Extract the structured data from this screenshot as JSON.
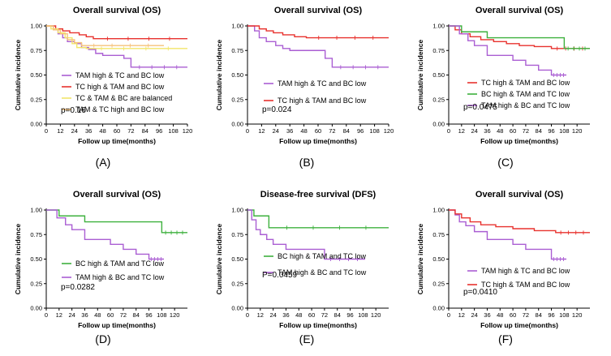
{
  "chart_data": [
    {
      "id": "A",
      "type": "line",
      "panel_label": "(A)",
      "title": "Overall survival  (OS)",
      "xlabel": "Follow up time(months)",
      "ylabel": "Cumulative incidence",
      "xlim": [
        0,
        120
      ],
      "ylim": [
        0,
        1
      ],
      "xticks": [
        "0",
        "12",
        "24",
        "36",
        "48",
        "60",
        "72",
        "84",
        "96",
        "108",
        "120"
      ],
      "yticks": [
        "0.00",
        "0.25",
        "0.50",
        "0.75",
        "1.00"
      ],
      "pvalue": "p=0.16",
      "series": [
        {
          "name": "TAM high  & TC and BC low",
          "color": "#aa5ed3",
          "x": [
            0,
            6,
            10,
            14,
            18,
            24,
            30,
            36,
            42,
            48,
            66,
            72,
            120
          ],
          "y": [
            1.0,
            0.96,
            0.92,
            0.88,
            0.84,
            0.82,
            0.78,
            0.76,
            0.72,
            0.7,
            0.67,
            0.58,
            0.58
          ]
        },
        {
          "name": "TC high  & TAM and BC low",
          "color": "#e8322e",
          "x": [
            0,
            8,
            14,
            20,
            28,
            34,
            40,
            120
          ],
          "y": [
            1.0,
            0.97,
            0.95,
            0.93,
            0.91,
            0.89,
            0.87,
            0.87
          ]
        },
        {
          "name": "TC  & TAM & BC are balanced",
          "color": "#f2e56a",
          "x": [
            0,
            4,
            10,
            16,
            22,
            26,
            34,
            120
          ],
          "y": [
            1.0,
            0.97,
            0.93,
            0.88,
            0.82,
            0.78,
            0.77,
            0.77
          ]
        },
        {
          "name": "TAM  & TC high  and BC low",
          "color": "#f6c27a",
          "x": [
            0,
            6,
            12,
            18,
            24,
            30,
            100
          ],
          "y": [
            1.0,
            0.96,
            0.92,
            0.86,
            0.83,
            0.8,
            0.8
          ]
        }
      ]
    },
    {
      "id": "B",
      "type": "line",
      "panel_label": "(B)",
      "title": "Overall survival  (OS)",
      "xlabel": "Follow up time(months)",
      "ylabel": "Cumulative incidence",
      "xlim": [
        0,
        120
      ],
      "ylim": [
        0,
        1
      ],
      "xticks": [
        "0",
        "12",
        "24",
        "36",
        "48",
        "60",
        "72",
        "84",
        "96",
        "108",
        "120"
      ],
      "yticks": [
        "0.00",
        "0.25",
        "0.50",
        "0.75",
        "1.00"
      ],
      "pvalue": "p=0.024",
      "series": [
        {
          "name": "TAM high  & TC and BC low",
          "color": "#aa5ed3",
          "x": [
            0,
            6,
            10,
            16,
            24,
            30,
            36,
            66,
            72,
            120
          ],
          "y": [
            1.0,
            0.95,
            0.88,
            0.84,
            0.8,
            0.77,
            0.75,
            0.67,
            0.58,
            0.58
          ]
        },
        {
          "name": "TC high  & TAM and BC low",
          "color": "#e8322e",
          "x": [
            0,
            10,
            16,
            22,
            30,
            40,
            50,
            120
          ],
          "y": [
            1.0,
            0.97,
            0.95,
            0.93,
            0.91,
            0.89,
            0.88,
            0.88
          ]
        }
      ]
    },
    {
      "id": "C",
      "type": "line",
      "panel_label": "(C)",
      "title": "Overall survival  (OS)",
      "xlabel": "Follow up time(months)",
      "ylabel": "Cumulative incidence",
      "xlim": [
        0,
        132
      ],
      "ylim": [
        0,
        1
      ],
      "xticks": [
        "0",
        "12",
        "24",
        "36",
        "48",
        "60",
        "72",
        "84",
        "96",
        "108",
        "120"
      ],
      "yticks": [
        "0.00",
        "0.25",
        "0.50",
        "0.75",
        "1.00"
      ],
      "pvalue": "p=0.0475",
      "series": [
        {
          "name": "TC high  & TAM and BC low",
          "color": "#e8322e",
          "x": [
            0,
            6,
            12,
            20,
            30,
            42,
            54,
            66,
            80,
            96,
            132
          ],
          "y": [
            1.0,
            0.96,
            0.92,
            0.89,
            0.86,
            0.84,
            0.82,
            0.8,
            0.79,
            0.77,
            0.77
          ]
        },
        {
          "name": "BC high & TAM and TC low",
          "color": "#3eb13e",
          "x": [
            0,
            12,
            36,
            108,
            132
          ],
          "y": [
            1.0,
            0.94,
            0.88,
            0.77,
            0.77
          ]
        },
        {
          "name": "TAM high & BC and TC low",
          "color": "#aa5ed3",
          "x": [
            0,
            10,
            18,
            24,
            36,
            60,
            72,
            84,
            96,
            110
          ],
          "y": [
            1.0,
            0.92,
            0.85,
            0.8,
            0.7,
            0.65,
            0.6,
            0.55,
            0.5,
            0.5
          ]
        }
      ]
    },
    {
      "id": "D",
      "type": "line",
      "panel_label": "(D)",
      "title": "Overall survival  (OS)",
      "xlabel": "Follow up time(months)",
      "ylabel": "Cumulative incidence",
      "xlim": [
        0,
        132
      ],
      "ylim": [
        0,
        1
      ],
      "xticks": [
        "0",
        "12",
        "24",
        "36",
        "48",
        "60",
        "72",
        "84",
        "96",
        "108",
        "120"
      ],
      "yticks": [
        "0.00",
        "0.25",
        "0.50",
        "0.75",
        "1.00"
      ],
      "pvalue": "p=0.0282",
      "series": [
        {
          "name": "BC high & TAM and TC low",
          "color": "#3eb13e",
          "x": [
            0,
            12,
            36,
            108,
            132
          ],
          "y": [
            1.0,
            0.94,
            0.88,
            0.77,
            0.77
          ]
        },
        {
          "name": "TAM high & BC and TC low",
          "color": "#aa5ed3",
          "x": [
            0,
            10,
            18,
            24,
            36,
            60,
            72,
            84,
            96,
            110
          ],
          "y": [
            1.0,
            0.92,
            0.85,
            0.8,
            0.7,
            0.65,
            0.6,
            0.55,
            0.5,
            0.5
          ]
        }
      ]
    },
    {
      "id": "E",
      "type": "line",
      "panel_label": "(E)",
      "title": "Disease-free survival (DFS)",
      "xlabel": "Follow up time(months)",
      "ylabel": "Cumulative incidence",
      "xlim": [
        0,
        132
      ],
      "ylim": [
        0,
        1
      ],
      "xticks": [
        "0",
        "12",
        "24",
        "36",
        "48",
        "60",
        "72",
        "84",
        "96",
        "108",
        "120"
      ],
      "yticks": [
        "0.00",
        "0.25",
        "0.50",
        "0.75",
        "1.00"
      ],
      "pvalue": "P=0.0459",
      "series": [
        {
          "name": "BC high & TAM and TC low",
          "color": "#3eb13e",
          "x": [
            0,
            6,
            20,
            132
          ],
          "y": [
            1.0,
            0.94,
            0.82,
            0.82
          ]
        },
        {
          "name": "TAM high & BC and TC low",
          "color": "#aa5ed3",
          "x": [
            0,
            4,
            8,
            12,
            18,
            24,
            36,
            72,
            110
          ],
          "y": [
            1.0,
            0.9,
            0.8,
            0.75,
            0.7,
            0.65,
            0.6,
            0.5,
            0.5
          ]
        }
      ]
    },
    {
      "id": "F",
      "type": "line",
      "panel_label": "(F)",
      "title": "Overall survival  (OS)",
      "xlabel": "Follow up time(months)",
      "ylabel": "Cumulative incidence",
      "xlim": [
        0,
        132
      ],
      "ylim": [
        0,
        1
      ],
      "xticks": [
        "0",
        "12",
        "24",
        "36",
        "48",
        "60",
        "72",
        "84",
        "96",
        "108",
        "120"
      ],
      "yticks": [
        "0.00",
        "0.25",
        "0.50",
        "0.75",
        "1.00"
      ],
      "pvalue": "p=0.0410",
      "series": [
        {
          "name": "TAM high  & TC and BC low",
          "color": "#aa5ed3",
          "x": [
            0,
            6,
            10,
            16,
            24,
            36,
            60,
            72,
            96,
            110
          ],
          "y": [
            1.0,
            0.95,
            0.88,
            0.84,
            0.78,
            0.7,
            0.65,
            0.6,
            0.5,
            0.5
          ]
        },
        {
          "name": "TC high  & TAM and BC low",
          "color": "#e8322e",
          "x": [
            0,
            6,
            12,
            20,
            30,
            44,
            60,
            80,
            100,
            132
          ],
          "y": [
            1.0,
            0.96,
            0.92,
            0.88,
            0.85,
            0.83,
            0.81,
            0.79,
            0.77,
            0.77
          ]
        }
      ]
    }
  ]
}
